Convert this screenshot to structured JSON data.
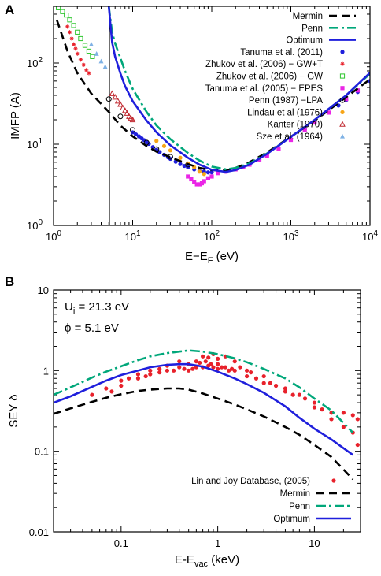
{
  "chart_data": [
    {
      "panel": "A",
      "type": "line",
      "xlabel": "E−E",
      "xlabel_sub": "F",
      "xlabel_unit": " (eV)",
      "ylabel": "IMFP (A)",
      "xscale": "log",
      "yscale": "log",
      "xlim": [
        1,
        10000
      ],
      "ylim": [
        1,
        500
      ],
      "xticks": [
        1,
        10,
        100,
        1000,
        10000
      ],
      "xticklabels": [
        "10",
        "10",
        "10",
        "10",
        "10"
      ],
      "xtickexp": [
        "0",
        "1",
        "2",
        "3",
        "4"
      ],
      "yticks": [
        1,
        10,
        100
      ],
      "yticklabels": [
        "10",
        "10",
        "10"
      ],
      "ytickexp": [
        "0",
        "1",
        "2"
      ],
      "vline": 5.1,
      "legend_position": "top-right",
      "series": [
        {
          "name": "Mermin",
          "kind": "line",
          "dash": "dashed",
          "color": "#000000",
          "x": [
            1.1,
            1.5,
            2,
            3,
            5,
            7,
            10,
            15,
            20,
            30,
            50,
            70,
            100,
            150,
            200,
            300,
            500,
            1000,
            2000,
            5000,
            10000
          ],
          "y": [
            340,
            140,
            75,
            42,
            25,
            17,
            12.5,
            9.5,
            8.1,
            6.9,
            5.7,
            5.1,
            4.8,
            4.75,
            5.1,
            6.0,
            7.9,
            12.4,
            19.5,
            38,
            63
          ]
        },
        {
          "name": "Penn",
          "kind": "line",
          "dash": "dashdot",
          "color": "#00a77a",
          "x": [
            5,
            5.5,
            6,
            7,
            8,
            10,
            15,
            20,
            30,
            50,
            70,
            100,
            150,
            200,
            300,
            500,
            1000,
            2000,
            5000,
            10000
          ],
          "y": [
            500,
            240,
            175,
            115,
            80,
            48,
            25,
            17,
            11.5,
            7.8,
            6.3,
            5.3,
            4.9,
            5.1,
            5.8,
            7.7,
            12.3,
            20,
            40,
            74
          ]
        },
        {
          "name": "Optimum",
          "kind": "line",
          "dash": "solid",
          "color": "#1f1fdc",
          "x": [
            5,
            5.5,
            6,
            7,
            8,
            10,
            15,
            20,
            30,
            50,
            70,
            100,
            150,
            200,
            300,
            500,
            1000,
            2000,
            5000,
            10000
          ],
          "y": [
            500,
            180,
            120,
            75,
            52,
            34,
            19.5,
            14,
            9.7,
            6.8,
            5.6,
            4.85,
            4.55,
            4.8,
            5.6,
            7.6,
            12.3,
            20,
            40,
            76
          ]
        },
        {
          "name": "Tanuma et al. (2011)",
          "kind": "points",
          "marker": "circle-filled",
          "color": "#1f1fdc",
          "x": [
            10,
            11,
            12,
            13,
            14,
            15,
            16,
            18,
            20,
            22,
            25,
            28,
            30,
            35,
            40,
            45,
            50,
            60,
            70,
            80,
            90,
            100,
            120,
            150,
            200,
            300,
            400,
            500,
            700,
            1000,
            1500,
            2000,
            3000,
            4000,
            5000,
            7000,
            10000
          ],
          "y": [
            14,
            13.2,
            12.5,
            11.8,
            11.2,
            10.6,
            10.1,
            9.2,
            8.5,
            8.0,
            7.4,
            6.9,
            6.6,
            6.1,
            5.7,
            5.4,
            5.2,
            4.9,
            4.7,
            4.6,
            4.5,
            4.5,
            4.5,
            4.6,
            4.9,
            5.7,
            6.5,
            7.4,
            9,
            11.6,
            15.3,
            18.7,
            24.5,
            30,
            35,
            44,
            60
          ]
        },
        {
          "name": "Zhukov et al. (2006) − GW+T",
          "kind": "points",
          "marker": "asterisk",
          "color": "#e8212b",
          "x": [
            1.5,
            1.6,
            1.7,
            1.8,
            1.9,
            2.0,
            2.2,
            2.4,
            2.6,
            2.8
          ],
          "y": [
            280,
            240,
            200,
            170,
            150,
            130,
            110,
            95,
            82,
            75
          ]
        },
        {
          "name": "Zhukov et al. (2006) − GW",
          "kind": "points",
          "marker": "square-open",
          "color": "#2dc62d",
          "x": [
            1.15,
            1.3,
            1.45,
            1.6,
            1.8,
            2.0,
            2.2,
            2.5,
            2.8,
            3.1
          ],
          "y": [
            480,
            430,
            390,
            340,
            290,
            240,
            200,
            165,
            140,
            120
          ]
        },
        {
          "name": "Tanuma et al. (2005) − EPES",
          "kind": "points",
          "marker": "square-filled",
          "color": "#ea25e6",
          "x": [
            50,
            55,
            60,
            65,
            70,
            75,
            80,
            90,
            100,
            120,
            150,
            200,
            250,
            300,
            400,
            500,
            700,
            1000,
            1500,
            2000,
            3000,
            5000,
            7000
          ],
          "y": [
            4.0,
            3.7,
            3.4,
            3.2,
            3.2,
            3.3,
            3.5,
            3.8,
            4.0,
            4.4,
            4.6,
            4.9,
            5.2,
            5.6,
            6.5,
            7.2,
            8.8,
            11.3,
            15,
            18.5,
            24.5,
            36,
            46
          ]
        },
        {
          "name": "Penn (1987) −LPA",
          "kind": "points",
          "marker": "circle-open",
          "color": "#000000",
          "x": [
            5,
            7,
            10,
            15,
            20,
            30,
            50
          ],
          "y": [
            36,
            22,
            15,
            10.5,
            8.7,
            7.0,
            5.6
          ]
        },
        {
          "name": "Lindau et al (1976)",
          "kind": "points",
          "marker": "circle-filled",
          "color": "#f7a516",
          "x": [
            20,
            25,
            30,
            40,
            50,
            60,
            70,
            80
          ],
          "y": [
            11,
            9.5,
            8.4,
            6.8,
            5.8,
            5.2,
            4.6,
            4.3
          ]
        },
        {
          "name": "Kanter (1970)",
          "kind": "points",
          "marker": "triangle-open",
          "color": "#c0282f",
          "x": [
            5.5,
            6,
            6.5,
            7,
            7.5,
            8,
            8.5,
            9,
            9.5,
            10
          ],
          "y": [
            42,
            38,
            34,
            31,
            28,
            26,
            24,
            22,
            21,
            20
          ]
        },
        {
          "name": "Sze et al. (1964)",
          "kind": "points",
          "marker": "triangle-filled",
          "color": "#7fb2e5",
          "x": [
            3,
            3.5,
            4,
            4.5
          ],
          "y": [
            170,
            130,
            105,
            90
          ]
        }
      ]
    },
    {
      "panel": "B",
      "type": "line",
      "xlabel": "E-E",
      "xlabel_sub": "vac",
      "xlabel_unit": " (keV)",
      "ylabel": "SEY δ",
      "xscale": "log",
      "yscale": "log",
      "xlim": [
        0.02,
        30
      ],
      "ylim": [
        0.01,
        10
      ],
      "xticks": [
        0.1,
        1,
        10
      ],
      "xticklabels": [
        "0.1",
        "1",
        "10"
      ],
      "yticks": [
        0.01,
        0.1,
        1,
        10
      ],
      "yticklabels": [
        "0.01",
        "0.1",
        "1",
        "10"
      ],
      "annotations": [
        {
          "main": "U",
          "sub": "i",
          "rest": " = 21.3 eV"
        },
        {
          "main": "ϕ = 5.1 eV",
          "sub": "",
          "rest": ""
        }
      ],
      "legend_position": "bottom-right",
      "series": [
        {
          "name": "Lin and Joy Database, (2005)",
          "kind": "points",
          "marker": "circle-filled",
          "color": "#e8212b",
          "x": [
            0.05,
            0.07,
            0.08,
            0.1,
            0.1,
            0.12,
            0.15,
            0.15,
            0.18,
            0.2,
            0.2,
            0.25,
            0.25,
            0.3,
            0.3,
            0.35,
            0.4,
            0.4,
            0.45,
            0.5,
            0.5,
            0.55,
            0.6,
            0.6,
            0.65,
            0.7,
            0.7,
            0.75,
            0.8,
            0.8,
            0.85,
            0.9,
            0.9,
            1.0,
            1.0,
            1.0,
            1.1,
            1.2,
            1.2,
            1.3,
            1.4,
            1.5,
            1.5,
            1.7,
            2.0,
            2.0,
            2.2,
            2.5,
            3.0,
            3.0,
            3.5,
            4.0,
            5.0,
            5.0,
            6.0,
            7.0,
            8.0,
            10,
            10,
            12,
            15,
            15,
            20,
            20,
            25,
            25,
            28,
            28
          ],
          "y": [
            0.5,
            0.6,
            0.55,
            0.65,
            0.75,
            0.8,
            0.8,
            0.9,
            0.85,
            0.9,
            1.0,
            0.95,
            1.05,
            1.0,
            1.15,
            1.0,
            1.1,
            1.3,
            1.05,
            1.2,
            1.0,
            1.05,
            1.3,
            1.1,
            1.25,
            1.5,
            1.1,
            1.3,
            1.45,
            1.15,
            1.2,
            1.6,
            1.1,
            1.4,
            1.2,
            1.05,
            1.1,
            1.5,
            1.1,
            1.0,
            1.05,
            1.3,
            1.0,
            1.1,
            1.0,
            0.85,
            0.95,
            0.8,
            0.85,
            0.7,
            0.7,
            0.65,
            0.6,
            0.55,
            0.5,
            0.5,
            0.45,
            0.4,
            0.35,
            0.33,
            0.3,
            0.25,
            0.3,
            0.2,
            0.28,
            0.17,
            0.25,
            0.12
          ]
        },
        {
          "name": "Mermin",
          "kind": "line",
          "dash": "dashed",
          "color": "#000000",
          "x": [
            0.02,
            0.03,
            0.05,
            0.07,
            0.1,
            0.15,
            0.2,
            0.3,
            0.4,
            0.5,
            0.7,
            1,
            1.5,
            2,
            3,
            5,
            7,
            10,
            15,
            25
          ],
          "y": [
            0.29,
            0.34,
            0.41,
            0.46,
            0.51,
            0.56,
            0.58,
            0.6,
            0.6,
            0.58,
            0.52,
            0.45,
            0.38,
            0.33,
            0.27,
            0.2,
            0.16,
            0.12,
            0.085,
            0.045
          ]
        },
        {
          "name": "Penn",
          "kind": "line",
          "dash": "dashdot",
          "color": "#00a77a",
          "x": [
            0.02,
            0.03,
            0.05,
            0.07,
            0.1,
            0.15,
            0.2,
            0.3,
            0.4,
            0.5,
            0.7,
            1,
            1.5,
            2,
            3,
            5,
            7,
            10,
            15,
            25
          ],
          "y": [
            0.5,
            0.62,
            0.82,
            0.97,
            1.13,
            1.35,
            1.5,
            1.65,
            1.72,
            1.78,
            1.72,
            1.6,
            1.42,
            1.27,
            1.05,
            0.8,
            0.62,
            0.45,
            0.32,
            0.17
          ]
        },
        {
          "name": "Optimum",
          "kind": "line",
          "dash": "solid",
          "color": "#1f1fdc",
          "x": [
            0.02,
            0.03,
            0.05,
            0.07,
            0.1,
            0.15,
            0.2,
            0.3,
            0.4,
            0.5,
            0.7,
            1,
            1.5,
            2,
            3,
            5,
            7,
            10,
            15,
            25
          ],
          "y": [
            0.4,
            0.48,
            0.63,
            0.75,
            0.88,
            1.0,
            1.1,
            1.18,
            1.2,
            1.2,
            1.12,
            0.97,
            0.8,
            0.68,
            0.53,
            0.36,
            0.26,
            0.19,
            0.14,
            0.09
          ]
        }
      ]
    }
  ]
}
